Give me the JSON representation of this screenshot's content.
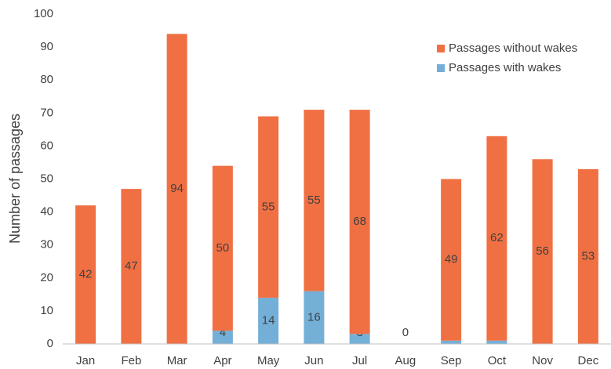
{
  "chart_data": {
    "type": "stacked_bar",
    "y_label": "Number of passages",
    "categories": [
      "Jan",
      "Feb",
      "Mar",
      "Apr",
      "May",
      "Jun",
      "Jul",
      "Aug",
      "Sep",
      "Oct",
      "Nov",
      "Dec"
    ],
    "series": [
      {
        "name": "Passages with wakes",
        "color": "#74afd8",
        "values": [
          0,
          0,
          0,
          4,
          14,
          16,
          3,
          0,
          1,
          1,
          0,
          0
        ]
      },
      {
        "name": "Passages without wakes",
        "color": "#f07043",
        "values": [
          42,
          47,
          94,
          50,
          55,
          55,
          68,
          null,
          49,
          62,
          56,
          53
        ]
      }
    ],
    "ylim": [
      0,
      100
    ],
    "yticks": [
      0,
      10,
      20,
      30,
      40,
      50,
      60,
      70,
      80,
      90,
      100
    ]
  }
}
